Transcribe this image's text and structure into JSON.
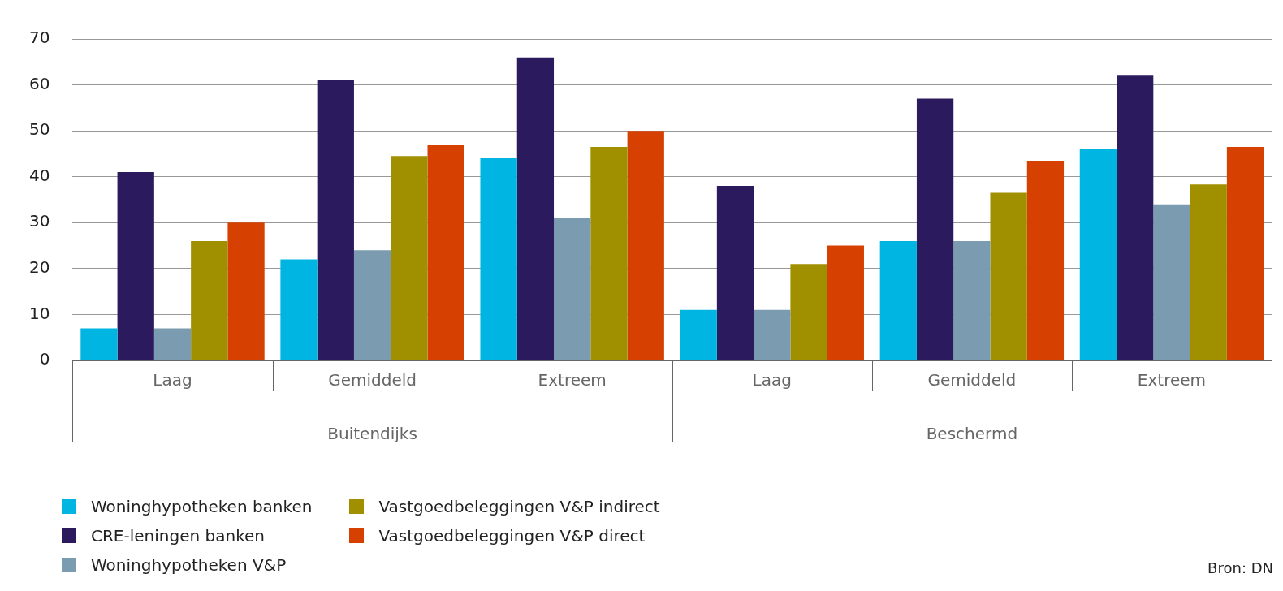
{
  "chart_data": {
    "type": "bar",
    "categories": [
      "Laag",
      "Gemiddeld",
      "Extreem",
      "Laag",
      "Gemiddeld",
      "Extreem"
    ],
    "series": [
      {
        "name": "Woninghypotheken banken",
        "color": "#00b5e2",
        "values": [
          7,
          22,
          44,
          11,
          26,
          46
        ]
      },
      {
        "name": "CRE-leningen banken",
        "color": "#2c1a5e",
        "values": [
          41,
          61,
          66,
          38,
          57,
          62
        ]
      },
      {
        "name": "Woninghypotheken V&P",
        "color": "#7a9bb0",
        "values": [
          7,
          24,
          31,
          11,
          26,
          34
        ]
      },
      {
        "name": "Vastgoedbeleggingen V&P indirect",
        "color": "#a09000",
        "values": [
          26,
          44.5,
          46.5,
          21,
          36.5,
          38.3
        ]
      },
      {
        "name": "Vastgoedbeleggingen V&P direct",
        "color": "#d64000",
        "values": [
          30,
          47,
          50,
          25,
          43.5,
          46.5
        ]
      }
    ],
    "ylim": [
      0,
      70
    ],
    "yticks": [
      0,
      10,
      20,
      30,
      40,
      50,
      60,
      70
    ],
    "grid": "y",
    "legend": "bottom left",
    "annotations": [
      "Buitendijks",
      "Beschermd",
      "Bron: DN"
    ]
  }
}
